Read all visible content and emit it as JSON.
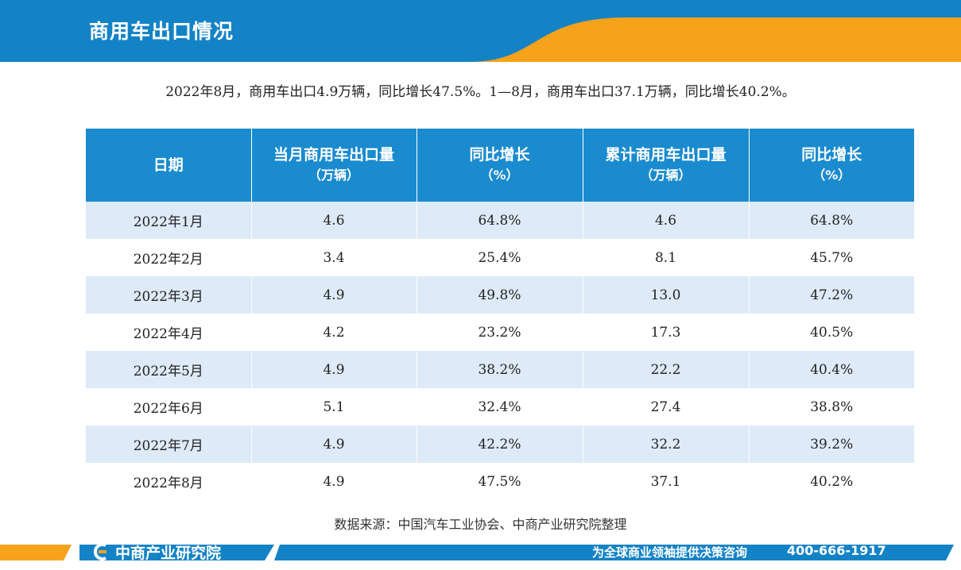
{
  "header": {
    "title": "商用车出口情况",
    "accent_color": "#f7a21b",
    "bar_color": "#1483c6"
  },
  "summary": "2022年8月，商用车出口4.9万辆，同比增长47.5%。1—8月，商用车出口37.1万辆，同比增长40.2%。",
  "table": {
    "headers": [
      {
        "label": "日期",
        "unit": ""
      },
      {
        "label": "当月商用车出口量",
        "unit": "（万辆）"
      },
      {
        "label": "同比增长",
        "unit": "（%）"
      },
      {
        "label": "累计商用车出口量",
        "unit": "（万辆）"
      },
      {
        "label": "同比增长",
        "unit": "（%）"
      }
    ],
    "rows": [
      [
        "2022年1月",
        "4.6",
        "64.8%",
        "4.6",
        "64.8%"
      ],
      [
        "2022年2月",
        "3.4",
        "25.4%",
        "8.1",
        "45.7%"
      ],
      [
        "2022年3月",
        "4.9",
        "49.8%",
        "13.0",
        "47.2%"
      ],
      [
        "2022年4月",
        "4.2",
        "23.2%",
        "17.3",
        "40.5%"
      ],
      [
        "2022年5月",
        "4.9",
        "38.2%",
        "22.2",
        "40.4%"
      ],
      [
        "2022年6月",
        "5.1",
        "32.4%",
        "27.4",
        "38.8%"
      ],
      [
        "2022年7月",
        "4.9",
        "42.2%",
        "32.2",
        "39.2%"
      ],
      [
        "2022年8月",
        "4.9",
        "47.5%",
        "37.1",
        "40.2%"
      ]
    ]
  },
  "source": "数据来源：中国汽车工业协会、中商产业研究院整理",
  "footer": {
    "brand": "中商产业研究院",
    "brand_icon": "brand-c-icon",
    "slogan": "为全球商业领袖提供决策咨询",
    "phone": "400-666-1917"
  }
}
